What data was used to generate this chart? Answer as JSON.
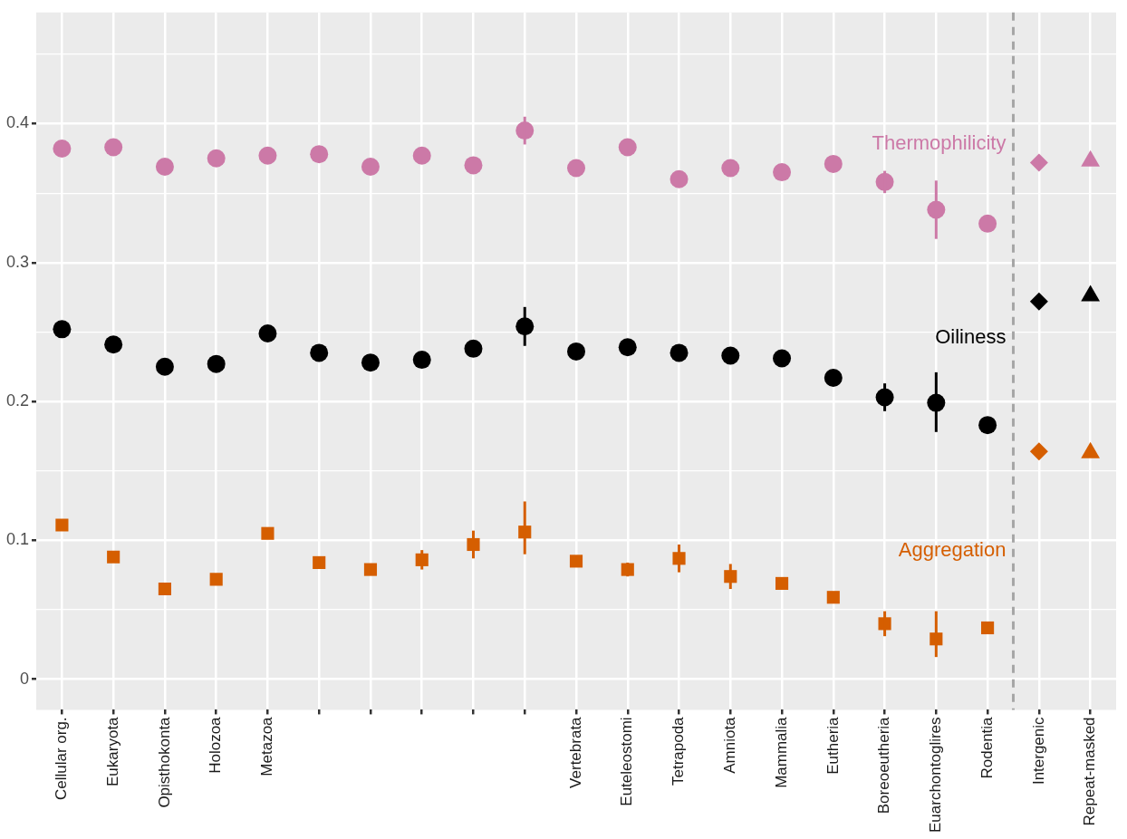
{
  "chart_data": {
    "type": "scatter",
    "categories": [
      "Cellular org.",
      "Eukaryota",
      "Opisthokonta",
      "Holozoa",
      "Metazoa",
      null,
      null,
      null,
      null,
      null,
      "Vertebrata",
      "Euteleostomi",
      "Tetrapoda",
      "Amniota",
      "Mammalia",
      "Eutheria",
      "Boreoeutheria",
      "Euarchontoglires",
      "Rodentia",
      "Intergenic",
      "Repeat-masked"
    ],
    "series": [
      {
        "name": "Thermophilicity",
        "color": "#cc79a7",
        "marker": "circle",
        "values": [
          0.382,
          0.383,
          0.369,
          0.375,
          0.377,
          0.378,
          0.369,
          0.377,
          0.37,
          0.395,
          0.368,
          0.383,
          0.36,
          0.368,
          0.365,
          0.371,
          0.358,
          0.338,
          0.328,
          null,
          null
        ],
        "errors": [
          null,
          null,
          null,
          null,
          null,
          null,
          null,
          null,
          null,
          0.01,
          null,
          null,
          null,
          null,
          null,
          null,
          0.008,
          [
            0.317,
            0.359
          ],
          null,
          null,
          null
        ]
      },
      {
        "type": "scatter",
        "color": "#cc79a7",
        "marker": "diamond",
        "x": [
          "Intergenic"
        ],
        "values": [
          0.372
        ]
      },
      {
        "type": "scatter",
        "color": "#cc79a7",
        "marker": "triangle",
        "x": [
          "Repeat-masked"
        ],
        "values": [
          0.373
        ]
      },
      {
        "name": "Oiliness",
        "color": "#000000",
        "marker": "circle",
        "values": [
          0.252,
          0.241,
          0.225,
          0.227,
          0.249,
          0.235,
          0.228,
          0.23,
          0.238,
          0.254,
          0.236,
          0.239,
          0.235,
          0.233,
          0.231,
          0.217,
          0.203,
          0.199,
          0.183,
          null,
          null
        ],
        "errors": [
          null,
          null,
          null,
          null,
          null,
          null,
          null,
          null,
          null,
          0.014,
          null,
          null,
          null,
          null,
          null,
          null,
          0.01,
          [
            0.178,
            0.221
          ],
          null,
          null,
          null
        ]
      },
      {
        "type": "scatter",
        "color": "#000000",
        "marker": "diamond",
        "x": [
          "Intergenic"
        ],
        "values": [
          0.272
        ]
      },
      {
        "type": "scatter",
        "color": "#000000",
        "marker": "triangle",
        "x": [
          "Repeat-masked"
        ],
        "values": [
          0.276
        ]
      },
      {
        "name": "Aggregation",
        "color": "#d55e00",
        "marker": "square",
        "values": [
          0.111,
          0.088,
          0.065,
          0.072,
          0.105,
          0.084,
          0.079,
          0.086,
          0.097,
          0.106,
          0.085,
          0.079,
          0.087,
          0.074,
          0.069,
          0.059,
          0.04,
          0.029,
          0.037,
          null,
          null
        ],
        "errors": [
          null,
          null,
          null,
          null,
          null,
          null,
          null,
          0.007,
          0.01,
          [
            0.09,
            0.128
          ],
          null,
          0.005,
          0.01,
          0.009,
          null,
          null,
          0.009,
          [
            0.016,
            0.049
          ],
          null,
          null,
          null
        ]
      },
      {
        "type": "scatter",
        "color": "#d55e00",
        "marker": "diamond",
        "x": [
          "Intergenic"
        ],
        "values": [
          0.164
        ]
      },
      {
        "type": "scatter",
        "color": "#d55e00",
        "marker": "triangle",
        "x": [
          "Repeat-masked"
        ],
        "values": [
          0.163
        ]
      }
    ],
    "ylim": [
      -0.022,
      0.48
    ],
    "yticks": [
      0,
      {
        "value": 0.05,
        "label": null
      },
      0.1,
      {
        "value": 0.15,
        "label": null
      },
      0.2,
      {
        "value": 0.25,
        "label": null
      },
      0.3,
      {
        "value": 0.35,
        "label": null
      },
      0.4,
      {
        "value": 0.45,
        "label": null
      }
    ],
    "ref_lines": [
      {
        "axis": "x",
        "value": "Intergenic",
        "line_style": "dashed",
        "color": "#a6a6a6"
      }
    ],
    "grid": true,
    "legend": false
  }
}
